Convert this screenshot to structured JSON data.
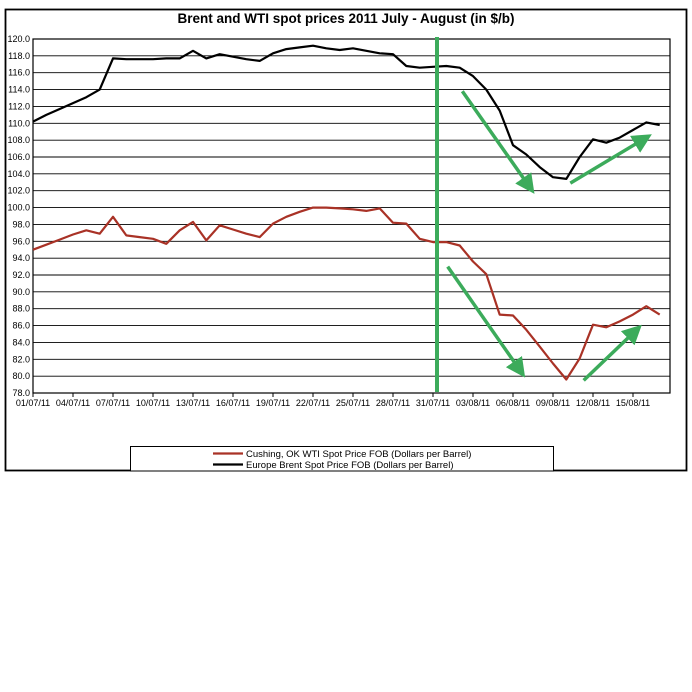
{
  "title": "Brent and WTI spot prices 2011 July - August (in $/b)",
  "colors": {
    "wti": "#a93226",
    "brent": "#000000",
    "trend": "#3cab5b",
    "grid": "#000000",
    "frame": "#000000",
    "background": "#ffffff"
  },
  "chart_data": {
    "type": "line",
    "title": "Brent and WTI spot prices 2011 July - August (in $/b)",
    "xlabel": "",
    "ylabel": "",
    "ylim": [
      78,
      120
    ],
    "ytick_step": 2,
    "yticks": [
      "120.0",
      "118.0",
      "116.0",
      "114.0",
      "112.0",
      "110.0",
      "108.0",
      "106.0",
      "104.0",
      "102.0",
      "100.0",
      "98.0",
      "96.0",
      "94.0",
      "92.0",
      "90.0",
      "88.0",
      "86.0",
      "84.0",
      "82.0",
      "80.0",
      "78.0"
    ],
    "xtick_labels": [
      "01/07/11",
      "04/07/11",
      "07/07/11",
      "10/07/11",
      "13/07/11",
      "16/07/11",
      "19/07/11",
      "22/07/11",
      "25/07/11",
      "28/07/11",
      "31/07/11",
      "03/08/11",
      "06/08/11",
      "09/08/11",
      "12/08/11",
      "15/08/11"
    ],
    "points_per_xtick": 3,
    "grid": true,
    "legend_position": "bottom",
    "series": [
      {
        "name": "Cushing, OK WTI Spot Price FOB (Dollars per Barrel)",
        "color": "#a93226",
        "values": [
          95.0,
          95.6,
          96.2,
          96.8,
          97.3,
          96.9,
          98.9,
          96.7,
          96.5,
          96.3,
          95.7,
          97.3,
          98.3,
          96.1,
          97.9,
          97.4,
          96.9,
          96.5,
          98.1,
          98.9,
          99.5,
          100.0,
          100.0,
          99.9,
          99.8,
          99.6,
          99.9,
          98.2,
          98.1,
          96.3,
          95.9,
          95.9,
          95.5,
          93.6,
          92.1,
          87.3,
          87.2,
          85.5,
          83.5,
          81.5,
          79.6,
          82.1,
          86.1,
          85.8,
          86.5,
          87.3,
          88.3,
          87.3
        ]
      },
      {
        "name": "Europe Brent Spot Price FOB (Dollars per Barrel)",
        "color": "#000000",
        "values": [
          110.2,
          111.0,
          111.7,
          112.4,
          113.1,
          114.0,
          117.7,
          117.6,
          117.6,
          117.6,
          117.7,
          117.7,
          118.6,
          117.7,
          118.2,
          117.9,
          117.6,
          117.4,
          118.3,
          118.8,
          119.0,
          119.2,
          118.9,
          118.7,
          118.9,
          118.6,
          118.3,
          118.2,
          116.8,
          116.6,
          116.7,
          116.8,
          116.6,
          115.6,
          114.0,
          111.5,
          107.4,
          106.3,
          104.8,
          103.6,
          103.4,
          106.0,
          108.1,
          107.7,
          108.3,
          109.2,
          110.1,
          109.8
        ]
      }
    ],
    "annotations": {
      "vline": {
        "label": "31/07/11",
        "at_index": 30.3,
        "color": "#3cab5b"
      },
      "arrows": [
        {
          "name": "brent-down-trend",
          "dir": "down",
          "from": [
            32.2,
            113.8
          ],
          "to": [
            37.4,
            102.1
          ]
        },
        {
          "name": "brent-up-trend",
          "dir": "up",
          "from": [
            40.3,
            102.9
          ],
          "to": [
            46.1,
            108.4
          ]
        },
        {
          "name": "wti-down-trend",
          "dir": "down",
          "from": [
            31.1,
            93.0
          ],
          "to": [
            36.7,
            80.3
          ]
        },
        {
          "name": "wti-up-trend",
          "dir": "up",
          "from": [
            41.3,
            79.5
          ],
          "to": [
            45.4,
            85.7
          ]
        }
      ]
    }
  },
  "legend": {
    "wti_label": "Cushing, OK WTI Spot Price FOB (Dollars per Barrel)",
    "brent_label": "Europe Brent Spot Price FOB (Dollars per Barrel)"
  }
}
